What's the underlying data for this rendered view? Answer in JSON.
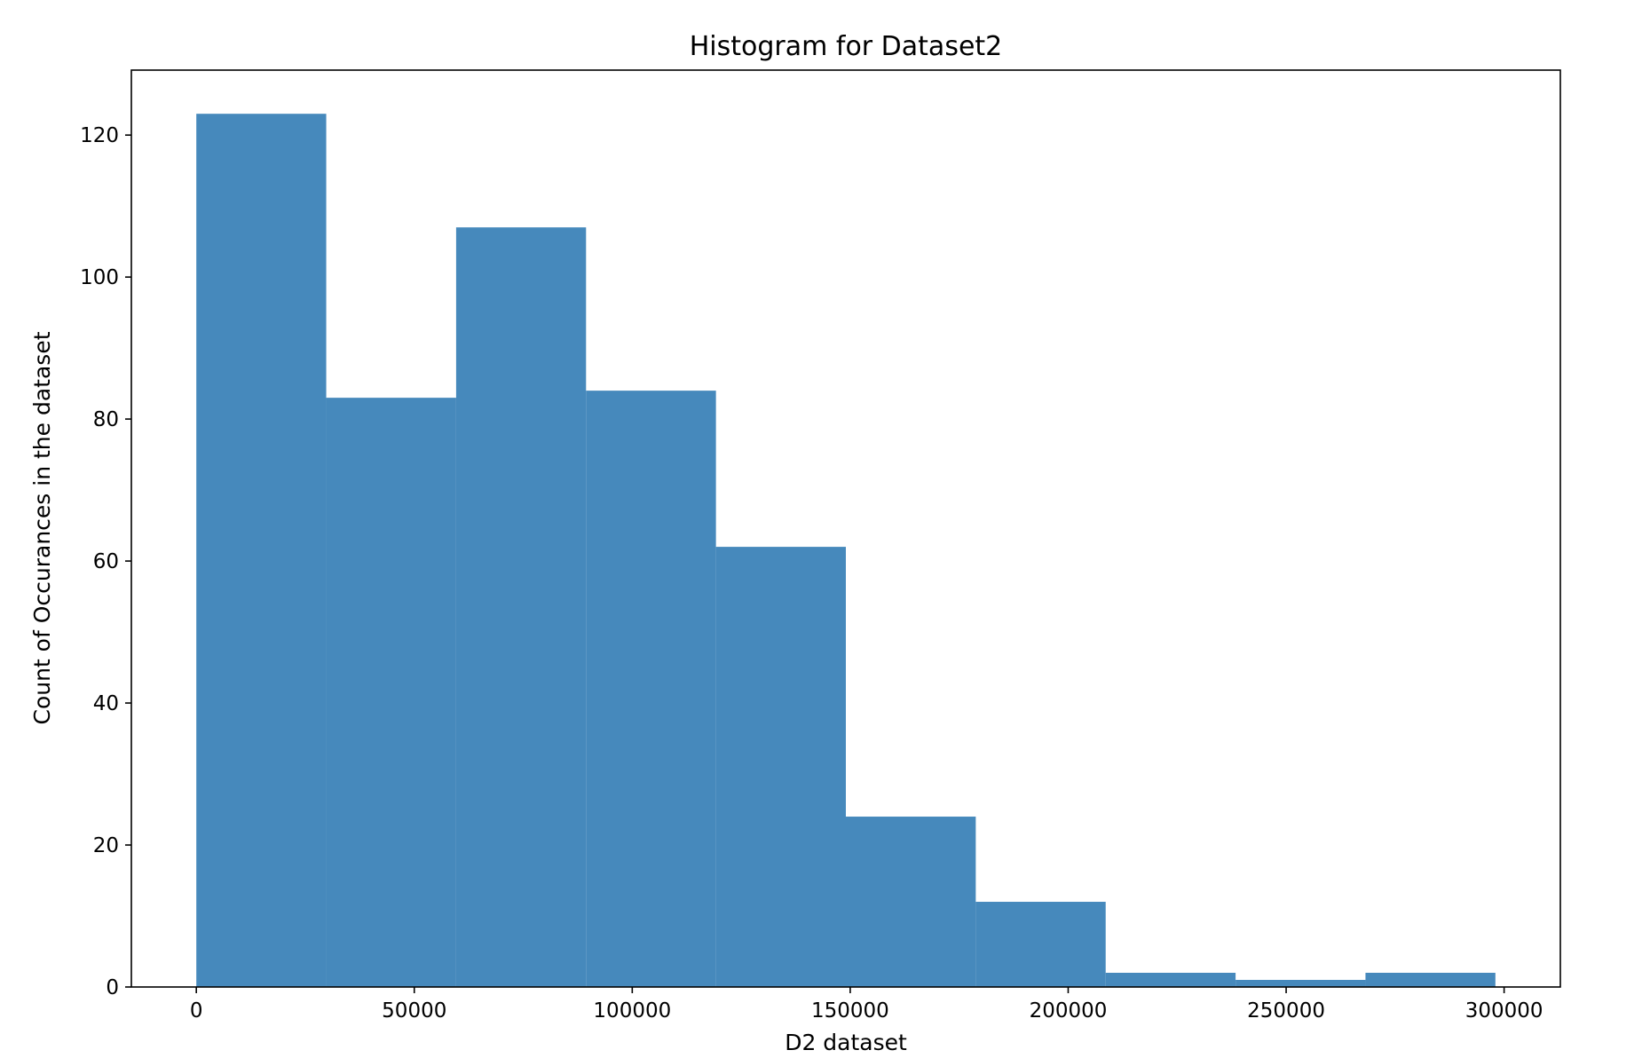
{
  "chart_data": {
    "type": "bar",
    "title": "Histogram for Dataset2",
    "xlabel": "D2 dataset",
    "ylabel": "Count of Occurances in the dataset",
    "bin_edges": [
      0,
      29800,
      59600,
      89400,
      119200,
      149000,
      178800,
      208600,
      238400,
      268200,
      298000
    ],
    "values": [
      123,
      83,
      107,
      84,
      62,
      24,
      12,
      2,
      1,
      2
    ],
    "xlim": [
      -14900,
      312900
    ],
    "ylim": [
      0,
      129.15
    ],
    "xticks": [
      0,
      50000,
      100000,
      150000,
      200000,
      250000,
      300000
    ],
    "xtick_labels": [
      "0",
      "50000",
      "100000",
      "150000",
      "200000",
      "250000",
      "300000"
    ],
    "yticks": [
      0,
      20,
      40,
      60,
      80,
      100,
      120
    ],
    "ytick_labels": [
      "0",
      "20",
      "40",
      "60",
      "80",
      "100",
      "120"
    ],
    "grid": false,
    "legend": "none",
    "bar_color": "#4689bc"
  }
}
